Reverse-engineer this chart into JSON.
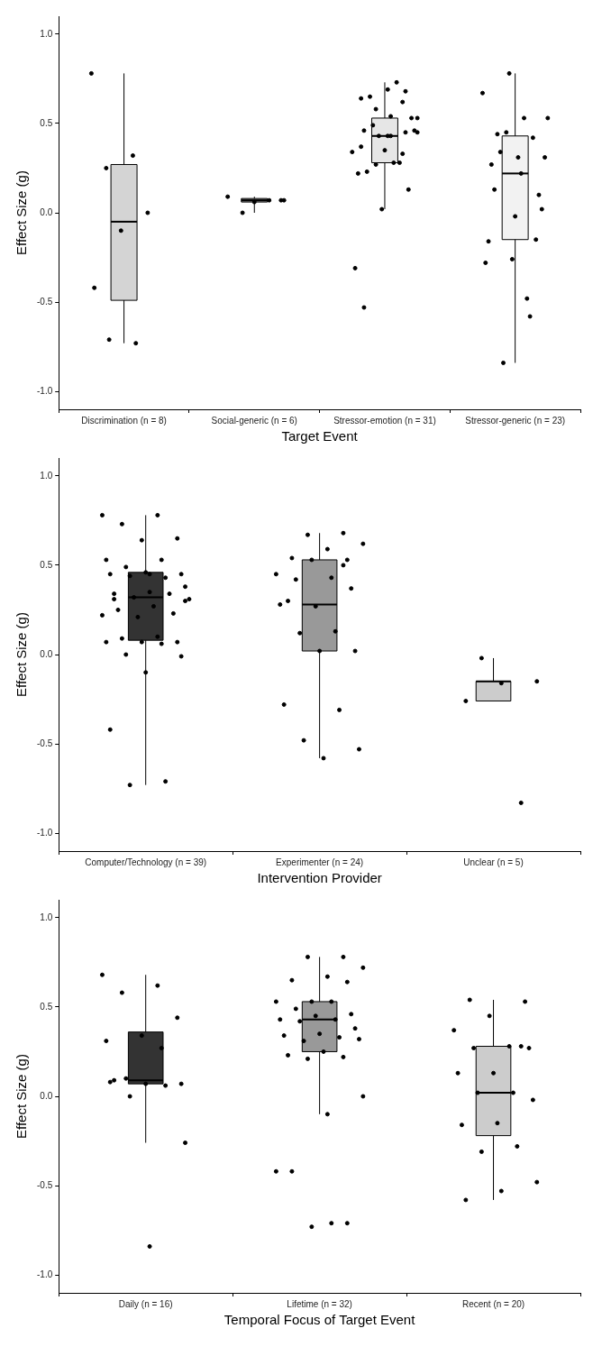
{
  "chart_data": [
    {
      "type": "box",
      "xlabel": "Target Event",
      "ylabel": "Effect Size (g)",
      "categories": [
        "Discrimination (n = 8)",
        "Social-generic (n = 6)",
        "Stressor-emotion (n = 31)",
        "Stressor-generic (n = 23)"
      ],
      "colors": [
        "#d4d4d4",
        "#8c8c8c",
        "#e6e6e6",
        "#f2f2f2"
      ],
      "ylim": [
        -1.1,
        1.1
      ],
      "yticks": [
        {
          "value": -1,
          "label": "-1.0"
        },
        {
          "value": -0.5,
          "label": "-0.5"
        },
        {
          "value": 0,
          "label": "0.0"
        },
        {
          "value": 0.5,
          "label": "0.5"
        },
        {
          "value": 1,
          "label": "1.0"
        }
      ],
      "grid": false,
      "boxes": [
        {
          "low": -0.73,
          "q1": -0.49,
          "median": -0.05,
          "q3": 0.27,
          "high": 0.78
        },
        {
          "low": 0.0,
          "q1": 0.06,
          "median": 0.07,
          "q3": 0.08,
          "high": 0.09
        },
        {
          "low": 0.02,
          "q1": 0.28,
          "median": 0.43,
          "q3": 0.53,
          "high": 0.73
        },
        {
          "low": -0.84,
          "q1": -0.15,
          "median": 0.22,
          "q3": 0.43,
          "high": 0.78
        }
      ],
      "series": [
        {
          "type": "scatter",
          "color": "#000000",
          "x": [
            "Discrimination (n = 8)",
            "Discrimination (n = 8)",
            "Discrimination (n = 8)",
            "Discrimination (n = 8)",
            "Discrimination (n = 8)",
            "Discrimination (n = 8)",
            "Discrimination (n = 8)",
            "Discrimination (n = 8)",
            "Social-generic (n = 6)",
            "Social-generic (n = 6)",
            "Social-generic (n = 6)",
            "Social-generic (n = 6)",
            "Social-generic (n = 6)",
            "Social-generic (n = 6)",
            "Stressor-emotion (n = 31)",
            "Stressor-emotion (n = 31)",
            "Stressor-emotion (n = 31)",
            "Stressor-emotion (n = 31)",
            "Stressor-emotion (n = 31)",
            "Stressor-emotion (n = 31)",
            "Stressor-emotion (n = 31)",
            "Stressor-emotion (n = 31)",
            "Stressor-emotion (n = 31)",
            "Stressor-emotion (n = 31)",
            "Stressor-emotion (n = 31)",
            "Stressor-emotion (n = 31)",
            "Stressor-emotion (n = 31)",
            "Stressor-emotion (n = 31)",
            "Stressor-emotion (n = 31)",
            "Stressor-emotion (n = 31)",
            "Stressor-emotion (n = 31)",
            "Stressor-emotion (n = 31)",
            "Stressor-emotion (n = 31)",
            "Stressor-emotion (n = 31)",
            "Stressor-emotion (n = 31)",
            "Stressor-emotion (n = 31)",
            "Stressor-emotion (n = 31)",
            "Stressor-emotion (n = 31)",
            "Stressor-emotion (n = 31)",
            "Stressor-emotion (n = 31)",
            "Stressor-emotion (n = 31)",
            "Stressor-emotion (n = 31)",
            "Stressor-emotion (n = 31)",
            "Stressor-emotion (n = 31)",
            "Stressor-emotion (n = 31)",
            "Stressor-generic (n = 23)",
            "Stressor-generic (n = 23)",
            "Stressor-generic (n = 23)",
            "Stressor-generic (n = 23)",
            "Stressor-generic (n = 23)",
            "Stressor-generic (n = 23)",
            "Stressor-generic (n = 23)",
            "Stressor-generic (n = 23)",
            "Stressor-generic (n = 23)",
            "Stressor-generic (n = 23)",
            "Stressor-generic (n = 23)",
            "Stressor-generic (n = 23)",
            "Stressor-generic (n = 23)",
            "Stressor-generic (n = 23)",
            "Stressor-generic (n = 23)",
            "Stressor-generic (n = 23)",
            "Stressor-generic (n = 23)",
            "Stressor-generic (n = 23)",
            "Stressor-generic (n = 23)",
            "Stressor-generic (n = 23)",
            "Stressor-generic (n = 23)",
            "Stressor-generic (n = 23)",
            "Stressor-generic (n = 23)"
          ],
          "values": [
            0.78,
            0.32,
            0.25,
            0.0,
            -0.1,
            -0.42,
            -0.73,
            -0.71,
            0.07,
            0.06,
            0.09,
            0.07,
            0.0,
            0.07,
            0.69,
            0.64,
            0.62,
            0.58,
            0.53,
            0.54,
            0.46,
            0.45,
            0.43,
            0.34,
            0.28,
            0.23,
            0.13,
            0.02,
            -0.31,
            0.73,
            0.65,
            0.53,
            0.35,
            0.22,
            0.28,
            0.49,
            0.46,
            0.43,
            0.37,
            0.33,
            0.27,
            0.45,
            0.43,
            -0.53,
            0.68,
            0.78,
            0.67,
            0.53,
            0.44,
            0.1,
            -0.26,
            -0.28,
            -0.48,
            0.34,
            0.02,
            -0.02,
            -0.16,
            -0.58,
            -0.84,
            0.31,
            0.31,
            0.27,
            0.42,
            0.45,
            0.53,
            0.22,
            0.13,
            -0.15
          ]
        }
      ]
    },
    {
      "type": "box",
      "xlabel": "Intervention Provider",
      "ylabel": "Effect Size (g)",
      "categories": [
        "Computer/Technology (n = 39)",
        "Experimenter (n = 24)",
        "Unclear (n = 5)"
      ],
      "colors": [
        "#333333",
        "#999999",
        "#cccccc"
      ],
      "ylim": [
        -1.1,
        1.1
      ],
      "yticks": [
        {
          "value": -1,
          "label": "-1.0"
        },
        {
          "value": -0.5,
          "label": "-0.5"
        },
        {
          "value": 0,
          "label": "0.0"
        },
        {
          "value": 0.5,
          "label": "0.5"
        },
        {
          "value": 1,
          "label": "1.0"
        }
      ],
      "grid": false,
      "boxes": [
        {
          "low": -0.73,
          "q1": 0.08,
          "median": 0.32,
          "q3": 0.46,
          "high": 0.78
        },
        {
          "low": -0.58,
          "q1": 0.02,
          "median": 0.28,
          "q3": 0.53,
          "high": 0.68
        },
        {
          "low": -0.26,
          "q1": -0.26,
          "median": -0.15,
          "q3": -0.15,
          "high": -0.02
        }
      ],
      "series": [
        {
          "type": "scatter",
          "color": "#000000",
          "x": [
            "Computer/Technology (n = 39)",
            "Computer/Technology (n = 39)",
            "Computer/Technology (n = 39)",
            "Computer/Technology (n = 39)",
            "Computer/Technology (n = 39)",
            "Computer/Technology (n = 39)",
            "Computer/Technology (n = 39)",
            "Computer/Technology (n = 39)",
            "Computer/Technology (n = 39)",
            "Computer/Technology (n = 39)",
            "Computer/Technology (n = 39)",
            "Computer/Technology (n = 39)",
            "Computer/Technology (n = 39)",
            "Computer/Technology (n = 39)",
            "Computer/Technology (n = 39)",
            "Computer/Technology (n = 39)",
            "Computer/Technology (n = 39)",
            "Computer/Technology (n = 39)",
            "Computer/Technology (n = 39)",
            "Computer/Technology (n = 39)",
            "Computer/Technology (n = 39)",
            "Computer/Technology (n = 39)",
            "Computer/Technology (n = 39)",
            "Computer/Technology (n = 39)",
            "Computer/Technology (n = 39)",
            "Computer/Technology (n = 39)",
            "Computer/Technology (n = 39)",
            "Computer/Technology (n = 39)",
            "Computer/Technology (n = 39)",
            "Computer/Technology (n = 39)",
            "Computer/Technology (n = 39)",
            "Computer/Technology (n = 39)",
            "Computer/Technology (n = 39)",
            "Computer/Technology (n = 39)",
            "Computer/Technology (n = 39)",
            "Computer/Technology (n = 39)",
            "Computer/Technology (n = 39)",
            "Computer/Technology (n = 39)",
            "Computer/Technology (n = 39)",
            "Experimenter (n = 24)",
            "Experimenter (n = 24)",
            "Experimenter (n = 24)",
            "Experimenter (n = 24)",
            "Experimenter (n = 24)",
            "Experimenter (n = 24)",
            "Experimenter (n = 24)",
            "Experimenter (n = 24)",
            "Experimenter (n = 24)",
            "Experimenter (n = 24)",
            "Experimenter (n = 24)",
            "Experimenter (n = 24)",
            "Experimenter (n = 24)",
            "Experimenter (n = 24)",
            "Experimenter (n = 24)",
            "Experimenter (n = 24)",
            "Experimenter (n = 24)",
            "Experimenter (n = 24)",
            "Experimenter (n = 24)",
            "Experimenter (n = 24)",
            "Experimenter (n = 24)",
            "Experimenter (n = 24)",
            "Experimenter (n = 24)",
            "Experimenter (n = 24)",
            "Unclear (n = 5)",
            "Unclear (n = 5)",
            "Unclear (n = 5)",
            "Unclear (n = 5)",
            "Unclear (n = 5)"
          ],
          "values": [
            0.78,
            0.78,
            0.73,
            0.65,
            0.64,
            0.53,
            0.53,
            0.49,
            0.45,
            0.46,
            0.45,
            0.43,
            0.44,
            0.38,
            0.35,
            0.34,
            0.34,
            0.32,
            0.31,
            0.27,
            0.25,
            0.23,
            0.21,
            0.22,
            0.1,
            0.09,
            0.07,
            0.07,
            0.07,
            0.06,
            0.0,
            -0.01,
            -0.1,
            -0.42,
            -0.71,
            -0.73,
            0.3,
            0.45,
            0.31,
            0.68,
            0.67,
            0.62,
            0.59,
            0.54,
            0.53,
            0.53,
            0.45,
            0.43,
            0.42,
            0.37,
            0.27,
            0.28,
            0.13,
            0.12,
            0.02,
            0.02,
            -0.28,
            -0.31,
            -0.48,
            -0.53,
            -0.58,
            0.3,
            0.5,
            -0.02,
            -0.15,
            -0.16,
            -0.26,
            -0.83
          ]
        }
      ]
    },
    {
      "type": "box",
      "xlabel": "Temporal Focus of Target Event",
      "ylabel": "Effect Size (g)",
      "categories": [
        "Daily (n = 16)",
        "Lifetime (n = 32)",
        "Recent (n = 20)"
      ],
      "colors": [
        "#333333",
        "#999999",
        "#cccccc"
      ],
      "ylim": [
        -1.1,
        1.1
      ],
      "yticks": [
        {
          "value": -1,
          "label": "-1.0"
        },
        {
          "value": -0.5,
          "label": "-0.5"
        },
        {
          "value": 0,
          "label": "0.0"
        },
        {
          "value": 0.5,
          "label": "0.5"
        },
        {
          "value": 1,
          "label": "1.0"
        }
      ],
      "grid": false,
      "boxes": [
        {
          "low": -0.26,
          "q1": 0.07,
          "median": 0.09,
          "q3": 0.36,
          "high": 0.68
        },
        {
          "low": -0.1,
          "q1": 0.25,
          "median": 0.43,
          "q3": 0.53,
          "high": 0.78
        },
        {
          "low": -0.58,
          "q1": -0.22,
          "median": 0.02,
          "q3": 0.28,
          "high": 0.54
        }
      ],
      "series": [
        {
          "type": "scatter",
          "color": "#000000",
          "x": [
            "Daily (n = 16)",
            "Daily (n = 16)",
            "Daily (n = 16)",
            "Daily (n = 16)",
            "Daily (n = 16)",
            "Daily (n = 16)",
            "Daily (n = 16)",
            "Daily (n = 16)",
            "Daily (n = 16)",
            "Daily (n = 16)",
            "Daily (n = 16)",
            "Daily (n = 16)",
            "Daily (n = 16)",
            "Daily (n = 16)",
            "Daily (n = 16)",
            "Daily (n = 16)",
            "Lifetime (n = 32)",
            "Lifetime (n = 32)",
            "Lifetime (n = 32)",
            "Lifetime (n = 32)",
            "Lifetime (n = 32)",
            "Lifetime (n = 32)",
            "Lifetime (n = 32)",
            "Lifetime (n = 32)",
            "Lifetime (n = 32)",
            "Lifetime (n = 32)",
            "Lifetime (n = 32)",
            "Lifetime (n = 32)",
            "Lifetime (n = 32)",
            "Lifetime (n = 32)",
            "Lifetime (n = 32)",
            "Lifetime (n = 32)",
            "Lifetime (n = 32)",
            "Lifetime (n = 32)",
            "Lifetime (n = 32)",
            "Lifetime (n = 32)",
            "Lifetime (n = 32)",
            "Lifetime (n = 32)",
            "Lifetime (n = 32)",
            "Lifetime (n = 32)",
            "Lifetime (n = 32)",
            "Lifetime (n = 32)",
            "Lifetime (n = 32)",
            "Lifetime (n = 32)",
            "Lifetime (n = 32)",
            "Lifetime (n = 32)",
            "Lifetime (n = 32)",
            "Lifetime (n = 32)",
            "Recent (n = 20)",
            "Recent (n = 20)",
            "Recent (n = 20)",
            "Recent (n = 20)",
            "Recent (n = 20)",
            "Recent (n = 20)",
            "Recent (n = 20)",
            "Recent (n = 20)",
            "Recent (n = 20)",
            "Recent (n = 20)",
            "Recent (n = 20)",
            "Recent (n = 20)",
            "Recent (n = 20)",
            "Recent (n = 20)",
            "Recent (n = 20)",
            "Recent (n = 20)",
            "Recent (n = 20)",
            "Recent (n = 20)",
            "Recent (n = 20)",
            "Recent (n = 20)"
          ],
          "values": [
            0.68,
            0.62,
            0.58,
            0.44,
            0.34,
            0.31,
            0.27,
            0.1,
            0.07,
            0.07,
            0.08,
            0.06,
            0.0,
            -0.26,
            -0.84,
            0.09,
            0.78,
            0.78,
            0.72,
            0.67,
            0.65,
            0.64,
            0.53,
            0.53,
            0.53,
            0.49,
            0.46,
            0.45,
            0.43,
            0.43,
            0.42,
            0.38,
            0.35,
            0.34,
            0.33,
            0.31,
            0.32,
            0.25,
            0.23,
            0.22,
            0.21,
            0.0,
            -0.1,
            -0.42,
            -0.71,
            -0.73,
            -0.42,
            -0.71,
            0.54,
            0.53,
            0.45,
            0.37,
            0.28,
            0.27,
            0.27,
            0.13,
            0.13,
            0.02,
            0.02,
            -0.02,
            -0.15,
            -0.16,
            -0.28,
            -0.31,
            -0.48,
            -0.53,
            -0.58,
            0.28
          ]
        }
      ]
    }
  ]
}
